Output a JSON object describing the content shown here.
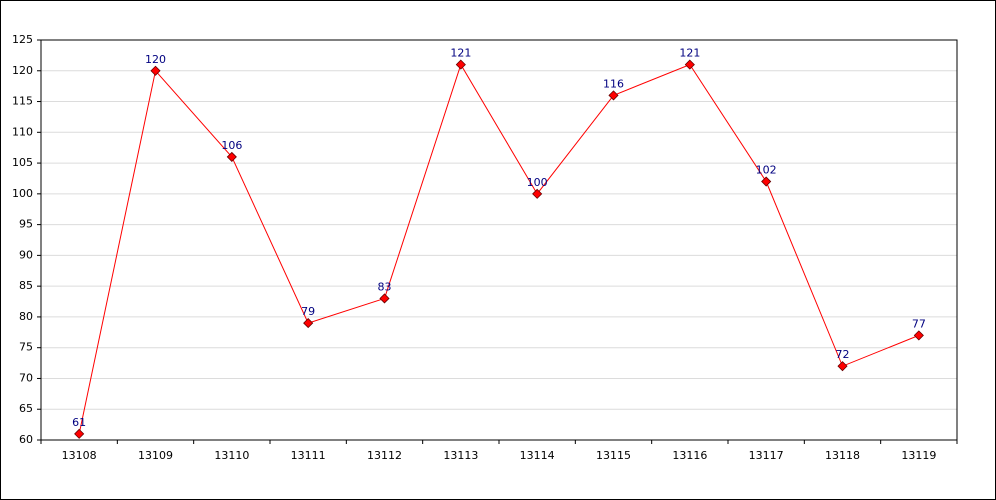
{
  "chart_data": {
    "type": "line",
    "categories": [
      "13108",
      "13109",
      "13110",
      "13111",
      "13112",
      "13113",
      "13114",
      "13115",
      "13116",
      "13117",
      "13118",
      "13119"
    ],
    "values": [
      61,
      120,
      106,
      79,
      83,
      121,
      100,
      116,
      121,
      102,
      72,
      77
    ],
    "color": "#ff0000",
    "marker_color": "#ff0000",
    "label_color": "#000080",
    "ylim": [
      60,
      125
    ],
    "yticks": [
      60,
      65,
      70,
      75,
      80,
      85,
      90,
      95,
      100,
      105,
      110,
      115,
      120,
      125
    ],
    "grid": true
  }
}
